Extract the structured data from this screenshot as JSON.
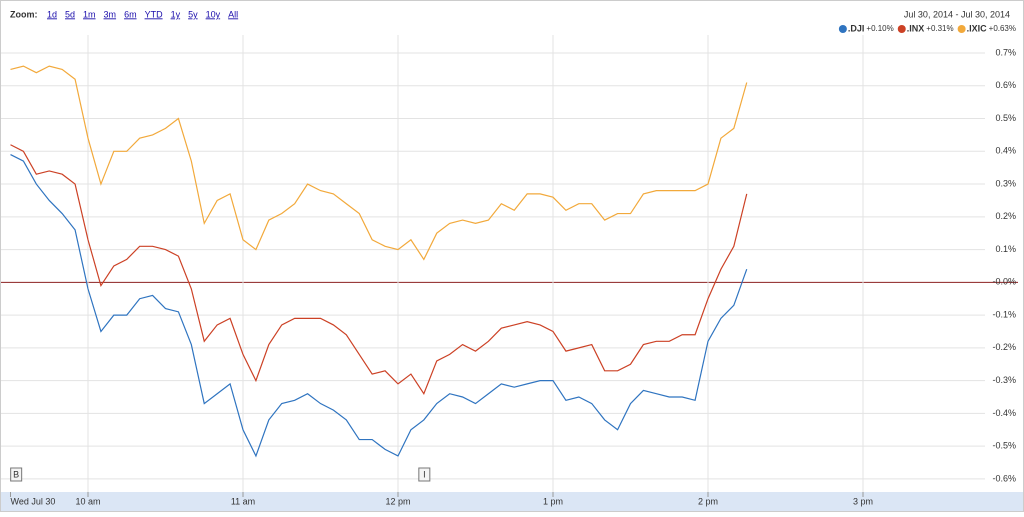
{
  "chart_data": {
    "type": "line",
    "zoom_label": "Zoom:",
    "zoom_options": [
      "1d",
      "5d",
      "1m",
      "3m",
      "6m",
      "YTD",
      "1y",
      "5y",
      "10y",
      "All"
    ],
    "date_range": "Jul 30, 2014  -  Jul 30, 2014",
    "x": [
      570,
      575,
      580,
      585,
      590,
      595,
      600,
      605,
      610,
      615,
      620,
      625,
      630,
      635,
      640,
      645,
      650,
      655,
      660,
      665,
      670,
      675,
      680,
      685,
      690,
      695,
      700,
      705,
      710,
      715,
      720,
      725,
      730,
      735,
      740,
      745,
      750,
      755,
      760,
      765,
      770,
      775,
      780,
      785,
      790,
      795,
      800,
      805,
      810,
      815,
      820,
      825,
      830,
      835,
      840,
      845,
      850,
      855
    ],
    "series": [
      {
        "name": ".DJI",
        "change": "+0.10%",
        "color": "#2f74c0",
        "values": [
          0.39,
          0.37,
          0.3,
          0.25,
          0.21,
          0.16,
          -0.02,
          -0.15,
          -0.1,
          -0.1,
          -0.05,
          -0.04,
          -0.08,
          -0.09,
          -0.19,
          -0.37,
          -0.34,
          -0.31,
          -0.45,
          -0.53,
          -0.42,
          -0.37,
          -0.36,
          -0.34,
          -0.37,
          -0.39,
          -0.42,
          -0.48,
          -0.48,
          -0.51,
          -0.53,
          -0.45,
          -0.42,
          -0.37,
          -0.34,
          -0.35,
          -0.37,
          -0.34,
          -0.31,
          -0.32,
          -0.31,
          -0.3,
          -0.3,
          -0.36,
          -0.35,
          -0.37,
          -0.42,
          -0.45,
          -0.37,
          -0.33,
          -0.34,
          -0.35,
          -0.35,
          -0.36,
          -0.18,
          -0.11,
          -0.07,
          0.04
        ]
      },
      {
        "name": ".INX",
        "change": "+0.31%",
        "color": "#cc4125",
        "values": [
          0.42,
          0.4,
          0.33,
          0.34,
          0.33,
          0.3,
          0.13,
          -0.01,
          0.05,
          0.07,
          0.11,
          0.11,
          0.1,
          0.08,
          -0.02,
          -0.18,
          -0.13,
          -0.11,
          -0.22,
          -0.3,
          -0.19,
          -0.13,
          -0.11,
          -0.11,
          -0.11,
          -0.13,
          -0.16,
          -0.22,
          -0.28,
          -0.27,
          -0.31,
          -0.28,
          -0.34,
          -0.24,
          -0.22,
          -0.19,
          -0.21,
          -0.18,
          -0.14,
          -0.13,
          -0.12,
          -0.13,
          -0.15,
          -0.21,
          -0.2,
          -0.19,
          -0.27,
          -0.27,
          -0.25,
          -0.19,
          -0.18,
          -0.18,
          -0.16,
          -0.16,
          -0.05,
          0.04,
          0.11,
          0.27
        ]
      },
      {
        "name": ".IXIC",
        "change": "+0.63%",
        "color": "#f2a93b",
        "values": [
          0.65,
          0.66,
          0.64,
          0.66,
          0.65,
          0.62,
          0.44,
          0.3,
          0.4,
          0.4,
          0.44,
          0.45,
          0.47,
          0.5,
          0.37,
          0.18,
          0.25,
          0.27,
          0.13,
          0.1,
          0.19,
          0.21,
          0.24,
          0.3,
          0.28,
          0.27,
          0.24,
          0.21,
          0.13,
          0.11,
          0.1,
          0.13,
          0.07,
          0.15,
          0.18,
          0.19,
          0.18,
          0.19,
          0.24,
          0.22,
          0.27,
          0.27,
          0.26,
          0.22,
          0.24,
          0.24,
          0.19,
          0.21,
          0.21,
          0.27,
          0.28,
          0.28,
          0.28,
          0.28,
          0.3,
          0.44,
          0.47,
          0.61
        ]
      }
    ],
    "xlim": [
      570,
      960
    ],
    "xticks": [
      {
        "value": 570,
        "label": "Wed Jul 30"
      },
      {
        "value": 600,
        "label": "10 am"
      },
      {
        "value": 660,
        "label": "11 am"
      },
      {
        "value": 720,
        "label": "12 pm"
      },
      {
        "value": 780,
        "label": "1 pm"
      },
      {
        "value": 840,
        "label": "2 pm"
      },
      {
        "value": 900,
        "label": "3 pm"
      }
    ],
    "ylim": [
      -0.64,
      0.755
    ],
    "yticks": [
      {
        "value": 0.7,
        "label": "0.7%"
      },
      {
        "value": 0.6,
        "label": "0.6%"
      },
      {
        "value": 0.5,
        "label": "0.5%"
      },
      {
        "value": 0.4,
        "label": "0.4%"
      },
      {
        "value": 0.3,
        "label": "0.3%"
      },
      {
        "value": 0.2,
        "label": "0.2%"
      },
      {
        "value": 0.1,
        "label": "0.1%"
      },
      {
        "value": 0,
        "label": "-0.0%"
      },
      {
        "value": -0.1,
        "label": "-0.1%"
      },
      {
        "value": -0.2,
        "label": "-0.2%"
      },
      {
        "value": -0.3,
        "label": "-0.3%"
      },
      {
        "value": -0.4,
        "label": "-0.4%"
      },
      {
        "value": -0.5,
        "label": "-0.5%"
      },
      {
        "value": -0.6,
        "label": "-0.6%"
      }
    ],
    "grid": true,
    "annotations": [
      {
        "label": "B",
        "x": 572
      },
      {
        "label": "I",
        "x": 730
      }
    ]
  }
}
